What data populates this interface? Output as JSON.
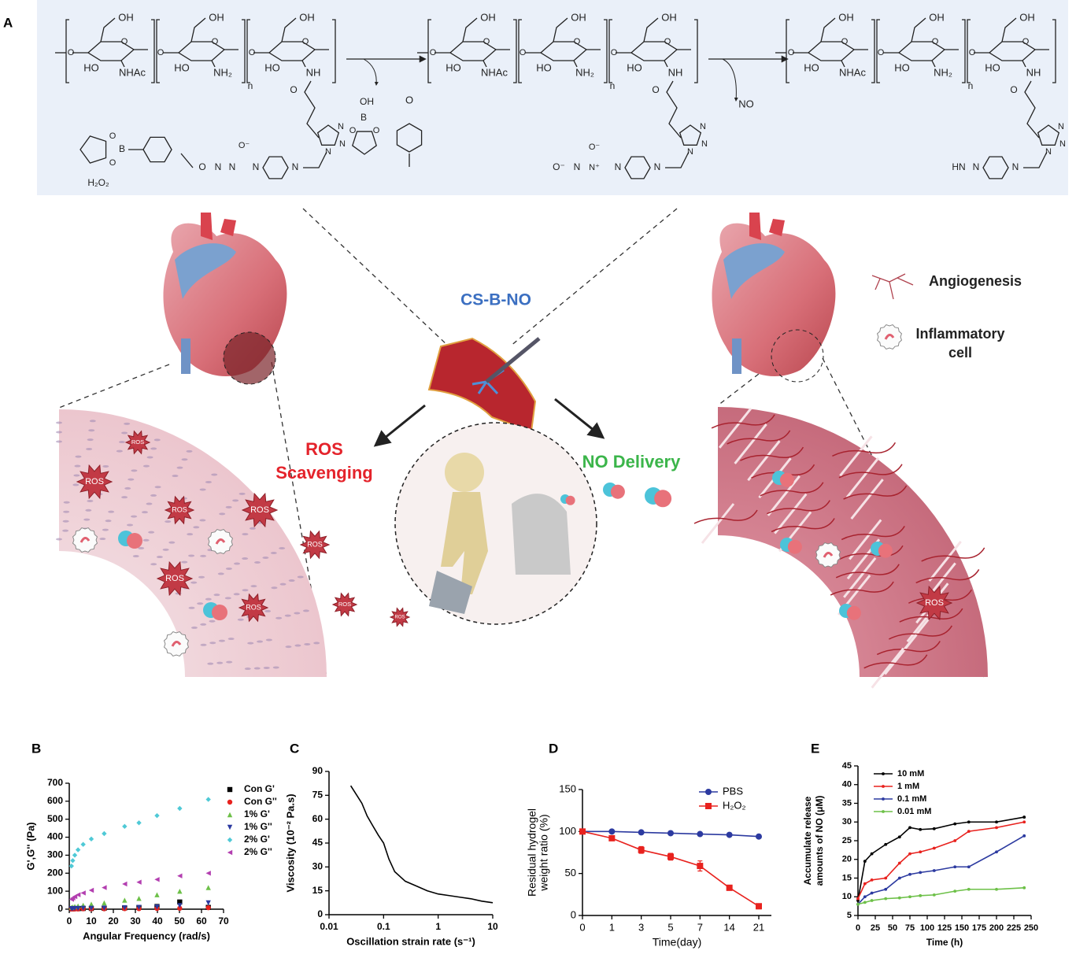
{
  "scheme": {
    "panel_label": "A",
    "chem": {
      "oh": "OH",
      "ho": "HO",
      "nhac": "NHAc",
      "nh2": "NH₂",
      "nh": "NH",
      "n": "n",
      "o": "O",
      "n_atom": "N",
      "b": "B",
      "h2o2": "H₂O₂",
      "no": "NO",
      "hn": "HN",
      "o_minus": "O⁻",
      "n_plus": "N⁺"
    },
    "center_label": "CS-B-NO",
    "ros_scavenging": [
      "ROS",
      "Scavenging"
    ],
    "no_delivery": "NO Delivery",
    "ros": "ROS",
    "legend": {
      "angiogenesis": "Angiogenesis",
      "inflammatory": [
        "Inflammatory",
        "cell"
      ]
    }
  },
  "chart_data": [
    {
      "type": "scatter",
      "panel_label": "B",
      "x_label": "Angular Frequency (rad/s)",
      "y_label": "G',G'' (Pa)",
      "xlim": [
        0,
        70
      ],
      "xticks": [
        0,
        10,
        20,
        30,
        40,
        50,
        60,
        70
      ],
      "ylim": [
        0,
        700
      ],
      "yticks": [
        0,
        100,
        200,
        300,
        400,
        500,
        600,
        700
      ],
      "legend": "right",
      "x": [
        1,
        1.58,
        2.51,
        3.98,
        6.31,
        10,
        15.85,
        25.12,
        31.62,
        39.81,
        50.12,
        63.1
      ],
      "series": [
        {
          "name": "Con G'",
          "color": "#000000",
          "marker": "square",
          "values": [
            2,
            2,
            3,
            3,
            4,
            4,
            5,
            7,
            10,
            15,
            40,
            10
          ]
        },
        {
          "name": "Con G''",
          "color": "#e8221e",
          "marker": "circle",
          "values": [
            1,
            1,
            1,
            1,
            2,
            2,
            2,
            3,
            3,
            4,
            5,
            8
          ]
        },
        {
          "name": "1% G'",
          "color": "#6dc048",
          "marker": "triangle-up",
          "values": [
            10,
            12,
            15,
            18,
            22,
            28,
            35,
            50,
            60,
            80,
            100,
            120
          ]
        },
        {
          "name": "1% G''",
          "color": "#2c3aa0",
          "marker": "triangle-down",
          "values": [
            3,
            3,
            4,
            4,
            5,
            5,
            6,
            8,
            10,
            12,
            20,
            35
          ]
        },
        {
          "name": "2% G'",
          "color": "#4fc9d6",
          "marker": "diamond",
          "values": [
            240,
            270,
            300,
            330,
            360,
            390,
            420,
            460,
            480,
            520,
            560,
            610
          ]
        },
        {
          "name": "2% G''",
          "color": "#b33fb0",
          "marker": "triangle-left",
          "values": [
            55,
            62,
            70,
            80,
            90,
            105,
            120,
            140,
            150,
            165,
            185,
            200
          ]
        }
      ]
    },
    {
      "type": "line",
      "panel_label": "C",
      "x_label": "Oscillation strain rate (s⁻¹)",
      "y_label": "Viscosity (10⁻² Pa.s)",
      "xlog": true,
      "xlim": [
        0.01,
        10
      ],
      "xticks": [
        0.01,
        0.1,
        1,
        10
      ],
      "ylim": [
        0,
        90
      ],
      "yticks": [
        0,
        15,
        30,
        45,
        60,
        75,
        90
      ],
      "x": [
        0.025,
        0.04,
        0.05,
        0.063,
        0.08,
        0.1,
        0.125,
        0.16,
        0.25,
        0.4,
        0.63,
        1,
        1.6,
        2.5,
        4,
        6.3,
        10
      ],
      "series": [
        {
          "name": null,
          "color": "#000000",
          "values": [
            81,
            70,
            62,
            56,
            50,
            45,
            35,
            27,
            21,
            18,
            15,
            13,
            12,
            11,
            10,
            8.5,
            7.5
          ]
        }
      ]
    },
    {
      "type": "line",
      "panel_label": "D",
      "x_label": "Time(day)",
      "y_label": [
        "Residual hydrogel",
        "weight ratio (%)"
      ],
      "categories": [
        "0",
        "1",
        "3",
        "5",
        "7",
        "14",
        "21"
      ],
      "ylim": [
        0,
        150
      ],
      "yticks": [
        0,
        50,
        100,
        150
      ],
      "legend": "upper-right",
      "series": [
        {
          "name": "PBS",
          "color": "#2c3aa0",
          "marker": "circle",
          "values": [
            100,
            100,
            99,
            98,
            97,
            96,
            94
          ]
        },
        {
          "name": "H₂O₂",
          "color": "#e8221e",
          "marker": "square",
          "values": [
            100,
            92,
            78,
            70,
            59,
            33,
            11
          ],
          "errors": [
            0,
            2,
            4,
            4,
            6,
            3,
            3
          ]
        }
      ]
    },
    {
      "type": "line",
      "panel_label": "E",
      "x_label": "Time (h)",
      "y_label": [
        "Accumulate release",
        "amounts of NO (μM)"
      ],
      "xlim": [
        0,
        250
      ],
      "xticks": [
        0,
        25,
        50,
        75,
        100,
        125,
        150,
        175,
        200,
        225,
        250
      ],
      "ylim": [
        5,
        45
      ],
      "yticks": [
        5,
        10,
        15,
        20,
        25,
        30,
        35,
        40,
        45
      ],
      "legend": "upper-left",
      "x": [
        0,
        10,
        20,
        40,
        60,
        75,
        90,
        110,
        140,
        160,
        200,
        240
      ],
      "series": [
        {
          "name": "10 mM",
          "color": "#000000",
          "marker": "dot",
          "values": [
            9,
            19.5,
            21.5,
            24,
            26,
            28.5,
            28,
            28.2,
            29.5,
            30,
            30,
            31.3
          ]
        },
        {
          "name": "1 mM",
          "color": "#e8221e",
          "marker": "dot",
          "values": [
            9.5,
            13.5,
            14.5,
            15,
            19,
            21.5,
            22,
            23,
            25,
            27.5,
            28.5,
            30
          ]
        },
        {
          "name": "0.1 mM",
          "color": "#2c3aa0",
          "marker": "dot",
          "values": [
            8,
            10,
            11,
            12,
            15,
            16,
            16.5,
            17,
            18,
            18,
            22,
            26.3
          ]
        },
        {
          "name": "0.01 mM",
          "color": "#6dc048",
          "marker": "dot",
          "values": [
            8,
            8.5,
            9,
            9.5,
            9.7,
            10,
            10.3,
            10.5,
            11.5,
            12,
            12,
            12.4
          ]
        }
      ]
    }
  ]
}
